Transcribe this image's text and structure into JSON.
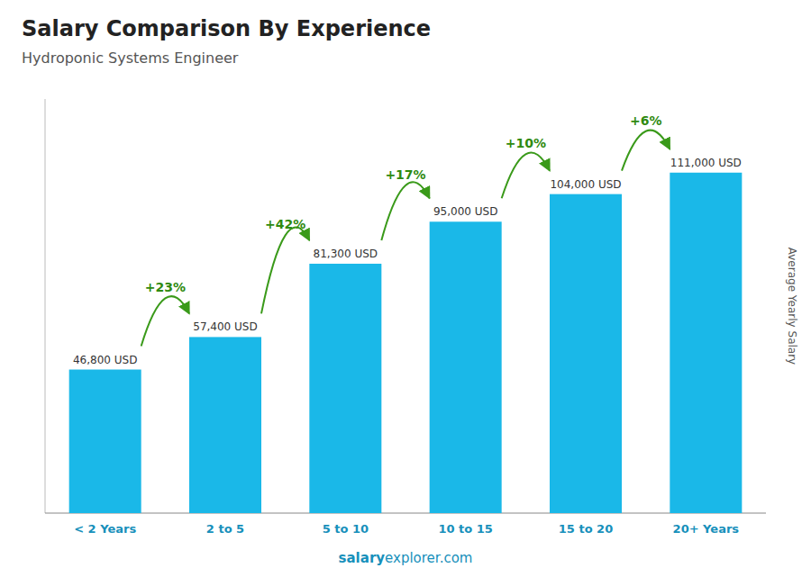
{
  "chart_data": {
    "type": "bar",
    "title": "Salary Comparison By Experience",
    "subtitle": "Hydroponic Systems Engineer",
    "y_label": "Average Yearly Salary",
    "categories": [
      "< 2 Years",
      "2 to 5",
      "5 to 10",
      "10 to 15",
      "15 to 20",
      "20+ Years"
    ],
    "values": [
      46800,
      57400,
      81300,
      95000,
      104000,
      111000
    ],
    "value_labels": [
      "46,800 USD",
      "57,400 USD",
      "81,300 USD",
      "95,000 USD",
      "104,000 USD",
      "111,000 USD"
    ],
    "annotations": [
      "+23%",
      "+42%",
      "+17%",
      "+10%",
      "+6%"
    ],
    "watermark": [
      "salary",
      "explorer.com"
    ],
    "color": "#1ab8e8",
    "ylim": [
      0,
      135000
    ],
    "grid": false,
    "data_labels": true,
    "tick_labels": "x"
  }
}
